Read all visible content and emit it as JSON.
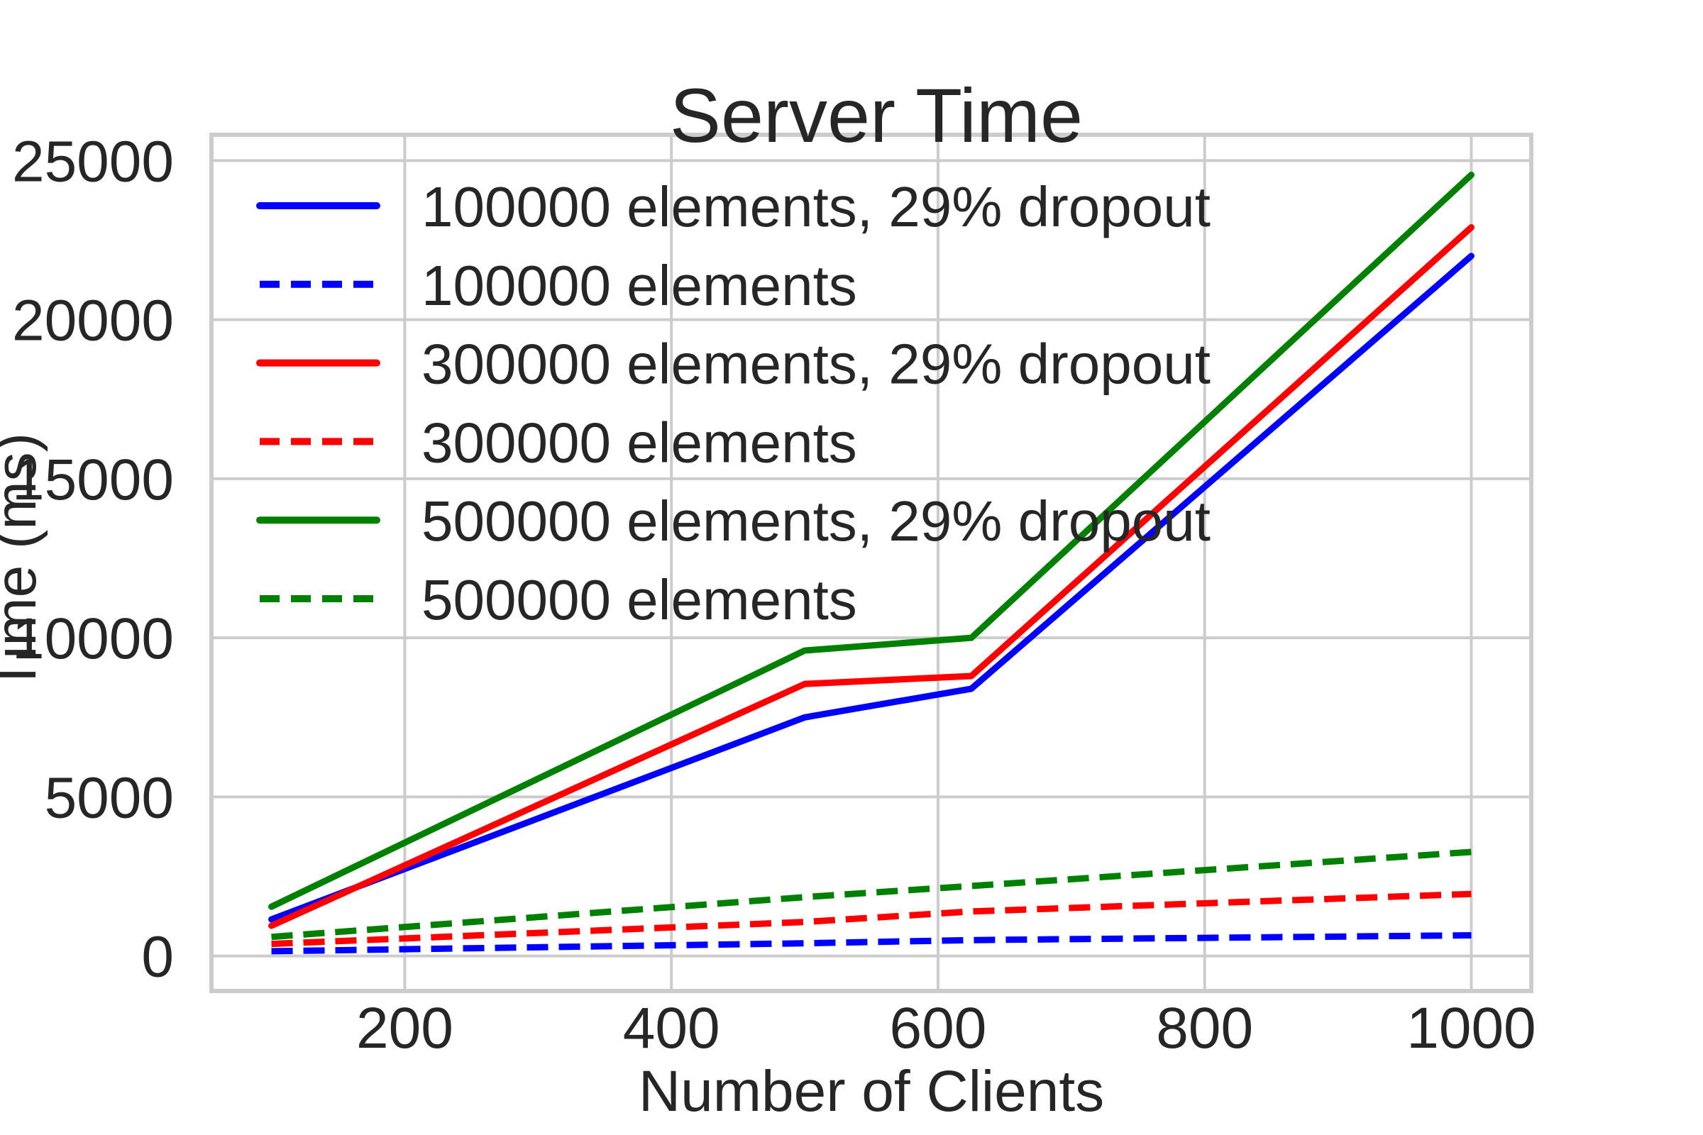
{
  "chart_data": {
    "type": "line",
    "title": "Server Time",
    "xlabel": "Number of Clients",
    "ylabel": "Time (ms)",
    "xlim": [
      55,
      1045
    ],
    "ylim": [
      -1100,
      25810
    ],
    "xticks": [
      200,
      400,
      600,
      800,
      1000
    ],
    "yticks": [
      0,
      5000,
      10000,
      15000,
      20000,
      25000
    ],
    "grid": true,
    "legend_position": "upper left",
    "legend_frame": false,
    "x": [
      100,
      500,
      625,
      1000
    ],
    "series": [
      {
        "name": "100000 elements, 29% dropout",
        "color": "#0000FF",
        "dash": false,
        "values": [
          1150,
          7500,
          8400,
          22000
        ]
      },
      {
        "name": "100000 elements",
        "color": "#0000FF",
        "dash": true,
        "values": [
          150,
          400,
          500,
          650
        ]
      },
      {
        "name": "300000 elements, 29% dropout",
        "color": "#FF0000",
        "dash": false,
        "values": [
          950,
          8550,
          8800,
          22900
        ]
      },
      {
        "name": "300000 elements",
        "color": "#FF0000",
        "dash": true,
        "values": [
          380,
          1070,
          1400,
          1950
        ]
      },
      {
        "name": "500000 elements, 29% dropout",
        "color": "#008000",
        "dash": false,
        "values": [
          1550,
          9600,
          10000,
          24550
        ]
      },
      {
        "name": "500000 elements",
        "color": "#008000",
        "dash": true,
        "values": [
          600,
          1850,
          2200,
          3270
        ]
      }
    ],
    "style": {
      "grid_color": "#CCCCCC",
      "spine_color": "#CCCCCC",
      "text_color": "#262626",
      "background": "#FFFFFF"
    }
  }
}
